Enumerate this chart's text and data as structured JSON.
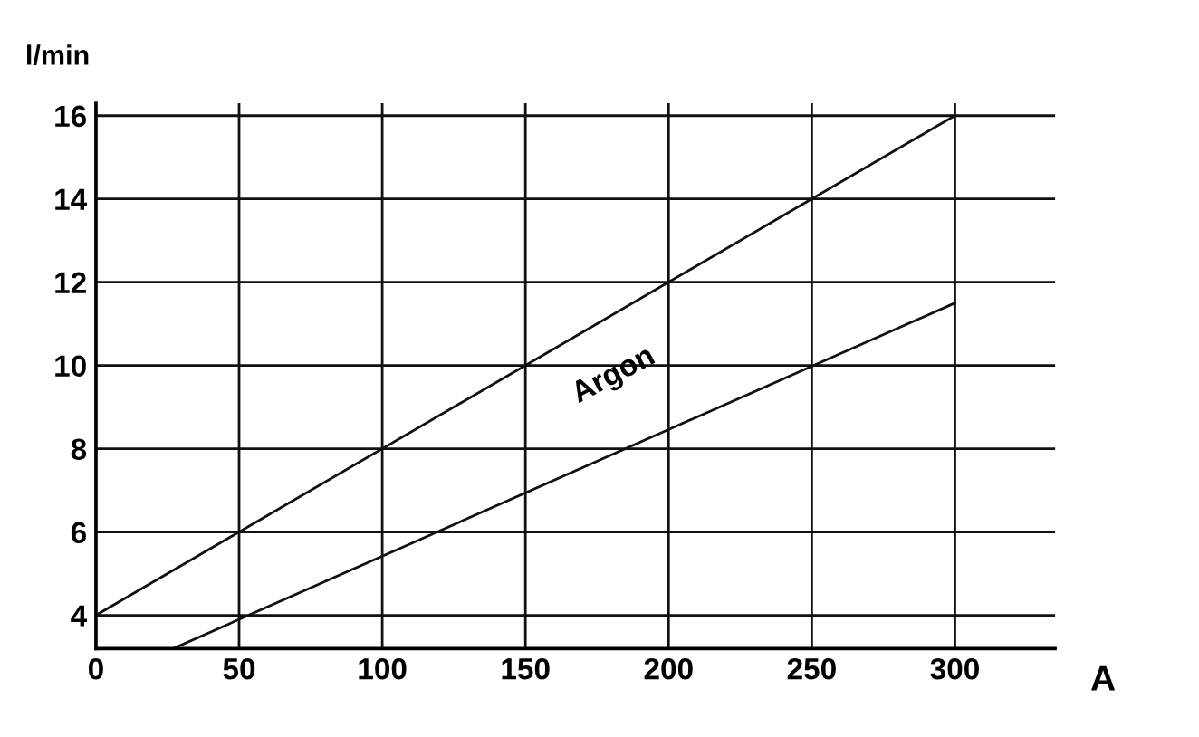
{
  "chart_data": {
    "type": "line",
    "xlabel": "A",
    "ylabel": "l/min",
    "series": [
      {
        "color": "#111111",
        "x": [
          0,
          300
        ],
        "values": [
          4,
          16
        ]
      },
      {
        "color": "#111111",
        "x": [
          27,
          300
        ],
        "values": [
          3.2,
          11.5
        ]
      }
    ],
    "annotations": [
      "Argon"
    ],
    "xlim": [
      0,
      335
    ],
    "ylim": [
      3.2,
      16.3
    ],
    "xticks": [
      0,
      50,
      100,
      150,
      200,
      250,
      300
    ],
    "yticks": [
      4,
      6,
      8,
      10,
      12,
      14,
      16
    ],
    "grid": true,
    "marker": "none",
    "line_style": "solid"
  }
}
